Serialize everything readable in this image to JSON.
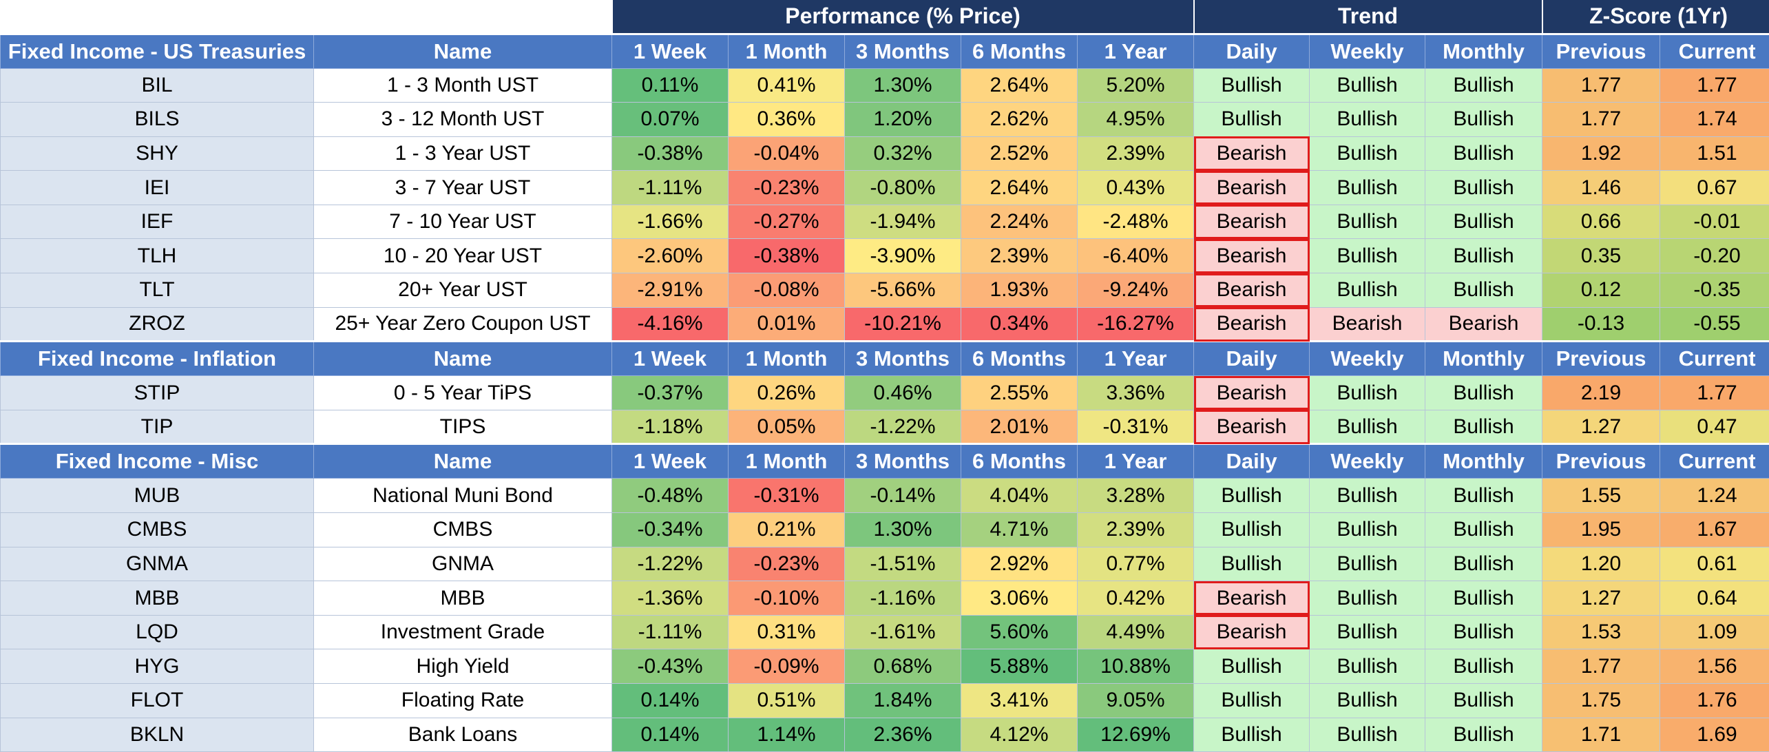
{
  "group_headers": {
    "performance": "Performance (% Price)",
    "trend": "Trend",
    "zscore": "Z-Score (1Yr)"
  },
  "columns": [
    "Name",
    "1 Week",
    "1 Month",
    "3 Months",
    "6 Months",
    "1 Year",
    "Daily",
    "Weekly",
    "Monthly",
    "Previous",
    "Current"
  ],
  "colors": {
    "header_dark": "#1f3864",
    "header_blue": "#4a78c2",
    "ticker_bg": "#dbe4f0",
    "bullish_bg": "#c8f5c8",
    "bearish_bg": "#fbd0d0",
    "bearish_outline": "#e01b1b",
    "heat_low": "#f8696b",
    "heat_mid": "#ffeb84",
    "heat_high": "#63be7b"
  },
  "sections": [
    {
      "title": "Fixed Income - US Treasuries",
      "rows": [
        {
          "ticker": "BIL",
          "name": "1 - 3 Month UST",
          "w1": "0.11%",
          "m1": "0.41%",
          "m3": "1.30%",
          "m6": "2.64%",
          "y1": "5.20%",
          "daily": "Bullish",
          "weekly": "Bullish",
          "monthly": "Bullish",
          "prev": "1.77",
          "curr": "1.77"
        },
        {
          "ticker": "BILS",
          "name": "3 - 12 Month UST",
          "w1": "0.07%",
          "m1": "0.36%",
          "m3": "1.20%",
          "m6": "2.62%",
          "y1": "4.95%",
          "daily": "Bullish",
          "weekly": "Bullish",
          "monthly": "Bullish",
          "prev": "1.77",
          "curr": "1.74"
        },
        {
          "ticker": "SHY",
          "name": "1 - 3 Year UST",
          "w1": "-0.38%",
          "m1": "-0.04%",
          "m3": "0.32%",
          "m6": "2.52%",
          "y1": "2.39%",
          "daily": "Bearish",
          "weekly": "Bullish",
          "monthly": "Bullish",
          "prev": "1.92",
          "curr": "1.51"
        },
        {
          "ticker": "IEI",
          "name": "3 - 7 Year UST",
          "w1": "-1.11%",
          "m1": "-0.23%",
          "m3": "-0.80%",
          "m6": "2.64%",
          "y1": "0.43%",
          "daily": "Bearish",
          "weekly": "Bullish",
          "monthly": "Bullish",
          "prev": "1.46",
          "curr": "0.67"
        },
        {
          "ticker": "IEF",
          "name": "7 - 10 Year UST",
          "w1": "-1.66%",
          "m1": "-0.27%",
          "m3": "-1.94%",
          "m6": "2.24%",
          "y1": "-2.48%",
          "daily": "Bearish",
          "weekly": "Bullish",
          "monthly": "Bullish",
          "prev": "0.66",
          "curr": "-0.01"
        },
        {
          "ticker": "TLH",
          "name": "10 - 20 Year UST",
          "w1": "-2.60%",
          "m1": "-0.38%",
          "m3": "-3.90%",
          "m6": "2.39%",
          "y1": "-6.40%",
          "daily": "Bearish",
          "weekly": "Bullish",
          "monthly": "Bullish",
          "prev": "0.35",
          "curr": "-0.20"
        },
        {
          "ticker": "TLT",
          "name": "20+ Year UST",
          "w1": "-2.91%",
          "m1": "-0.08%",
          "m3": "-5.66%",
          "m6": "1.93%",
          "y1": "-9.24%",
          "daily": "Bearish",
          "weekly": "Bullish",
          "monthly": "Bullish",
          "prev": "0.12",
          "curr": "-0.35"
        },
        {
          "ticker": "ZROZ",
          "name": "25+ Year Zero Coupon UST",
          "w1": "-4.16%",
          "m1": "0.01%",
          "m3": "-10.21%",
          "m6": "0.34%",
          "y1": "-16.27%",
          "daily": "Bearish",
          "weekly": "Bearish",
          "monthly": "Bearish",
          "prev": "-0.13",
          "curr": "-0.55"
        }
      ]
    },
    {
      "title": "Fixed Income - Inflation",
      "rows": [
        {
          "ticker": "STIP",
          "name": "0 - 5 Year TiPS",
          "w1": "-0.37%",
          "m1": "0.26%",
          "m3": "0.46%",
          "m6": "2.55%",
          "y1": "3.36%",
          "daily": "Bearish",
          "weekly": "Bullish",
          "monthly": "Bullish",
          "prev": "2.19",
          "curr": "1.77"
        },
        {
          "ticker": "TIP",
          "name": "TIPS",
          "w1": "-1.18%",
          "m1": "0.05%",
          "m3": "-1.22%",
          "m6": "2.01%",
          "y1": "-0.31%",
          "daily": "Bearish",
          "weekly": "Bullish",
          "monthly": "Bullish",
          "prev": "1.27",
          "curr": "0.47"
        }
      ]
    },
    {
      "title": "Fixed Income - Misc",
      "rows": [
        {
          "ticker": "MUB",
          "name": "National Muni Bond",
          "w1": "-0.48%",
          "m1": "-0.31%",
          "m3": "-0.14%",
          "m6": "4.04%",
          "y1": "3.28%",
          "daily": "Bullish",
          "weekly": "Bullish",
          "monthly": "Bullish",
          "prev": "1.55",
          "curr": "1.24"
        },
        {
          "ticker": "CMBS",
          "name": "CMBS",
          "w1": "-0.34%",
          "m1": "0.21%",
          "m3": "1.30%",
          "m6": "4.71%",
          "y1": "2.39%",
          "daily": "Bullish",
          "weekly": "Bullish",
          "monthly": "Bullish",
          "prev": "1.95",
          "curr": "1.67"
        },
        {
          "ticker": "GNMA",
          "name": "GNMA",
          "w1": "-1.22%",
          "m1": "-0.23%",
          "m3": "-1.51%",
          "m6": "2.92%",
          "y1": "0.77%",
          "daily": "Bullish",
          "weekly": "Bullish",
          "monthly": "Bullish",
          "prev": "1.20",
          "curr": "0.61"
        },
        {
          "ticker": "MBB",
          "name": "MBB",
          "w1": "-1.36%",
          "m1": "-0.10%",
          "m3": "-1.16%",
          "m6": "3.06%",
          "y1": "0.42%",
          "daily": "Bearish",
          "weekly": "Bullish",
          "monthly": "Bullish",
          "prev": "1.27",
          "curr": "0.64"
        },
        {
          "ticker": "LQD",
          "name": "Investment Grade",
          "w1": "-1.11%",
          "m1": "0.31%",
          "m3": "-1.61%",
          "m6": "5.60%",
          "y1": "4.49%",
          "daily": "Bearish",
          "weekly": "Bullish",
          "monthly": "Bullish",
          "prev": "1.53",
          "curr": "1.09"
        },
        {
          "ticker": "HYG",
          "name": "High Yield",
          "w1": "-0.43%",
          "m1": "-0.09%",
          "m3": "0.68%",
          "m6": "5.88%",
          "y1": "10.88%",
          "daily": "Bullish",
          "weekly": "Bullish",
          "monthly": "Bullish",
          "prev": "1.77",
          "curr": "1.56"
        },
        {
          "ticker": "FLOT",
          "name": "Floating Rate",
          "w1": "0.14%",
          "m1": "0.51%",
          "m3": "1.84%",
          "m6": "3.41%",
          "y1": "9.05%",
          "daily": "Bullish",
          "weekly": "Bullish",
          "monthly": "Bullish",
          "prev": "1.75",
          "curr": "1.76"
        },
        {
          "ticker": "BKLN",
          "name": "Bank Loans",
          "w1": "0.14%",
          "m1": "1.14%",
          "m3": "2.36%",
          "m6": "4.12%",
          "y1": "12.69%",
          "daily": "Bullish",
          "weekly": "Bullish",
          "monthly": "Bullish",
          "prev": "1.71",
          "curr": "1.69"
        }
      ]
    }
  ]
}
